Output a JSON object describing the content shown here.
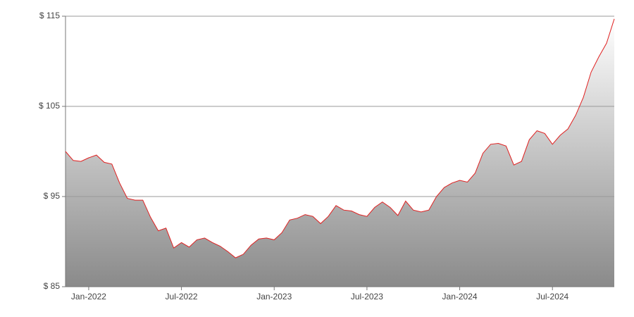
{
  "chart_data": {
    "type": "area",
    "categories": [
      null,
      null,
      null,
      "Jan-2022",
      null,
      null,
      null,
      null,
      null,
      null,
      null,
      null,
      null,
      null,
      null,
      "Jul-2022",
      null,
      null,
      null,
      null,
      null,
      null,
      null,
      null,
      null,
      null,
      null,
      "Jan-2023",
      null,
      null,
      null,
      null,
      null,
      null,
      null,
      null,
      null,
      null,
      null,
      "Jul-2023",
      null,
      null,
      null,
      null,
      null,
      null,
      null,
      null,
      null,
      null,
      null,
      "Jan-2024",
      null,
      null,
      null,
      null,
      null,
      null,
      null,
      null,
      null,
      null,
      null,
      "Jul-2024",
      null,
      null,
      null,
      null,
      null,
      null,
      null,
      null
    ],
    "values": [
      100.0,
      99.0,
      98.9,
      99.3,
      99.6,
      98.8,
      98.6,
      96.5,
      94.8,
      94.6,
      94.6,
      92.7,
      91.2,
      91.5,
      89.3,
      89.9,
      89.4,
      90.2,
      90.4,
      89.9,
      89.5,
      88.9,
      88.2,
      88.6,
      89.6,
      90.3,
      90.4,
      90.2,
      91.0,
      92.4,
      92.6,
      93.0,
      92.8,
      92.0,
      92.8,
      94.0,
      93.5,
      93.4,
      93.0,
      92.8,
      93.8,
      94.4,
      93.8,
      92.9,
      94.5,
      93.5,
      93.3,
      93.5,
      95.0,
      96.0,
      96.5,
      96.8,
      96.6,
      97.6,
      99.8,
      100.8,
      100.9,
      100.6,
      98.5,
      98.9,
      101.3,
      102.3,
      102.0,
      100.8,
      101.8,
      102.5,
      104.0,
      106.0,
      108.8,
      110.5,
      112.0,
      114.7
    ],
    "color": "#e02020",
    "ylim": [
      85,
      115
    ],
    "yticks": [
      {
        "value": 85,
        "label": "$ 85"
      },
      {
        "value": 95,
        "label": "$ 95"
      },
      {
        "value": 105,
        "label": "$ 105"
      },
      {
        "value": 115,
        "label": "$ 115"
      }
    ],
    "grid": true
  }
}
